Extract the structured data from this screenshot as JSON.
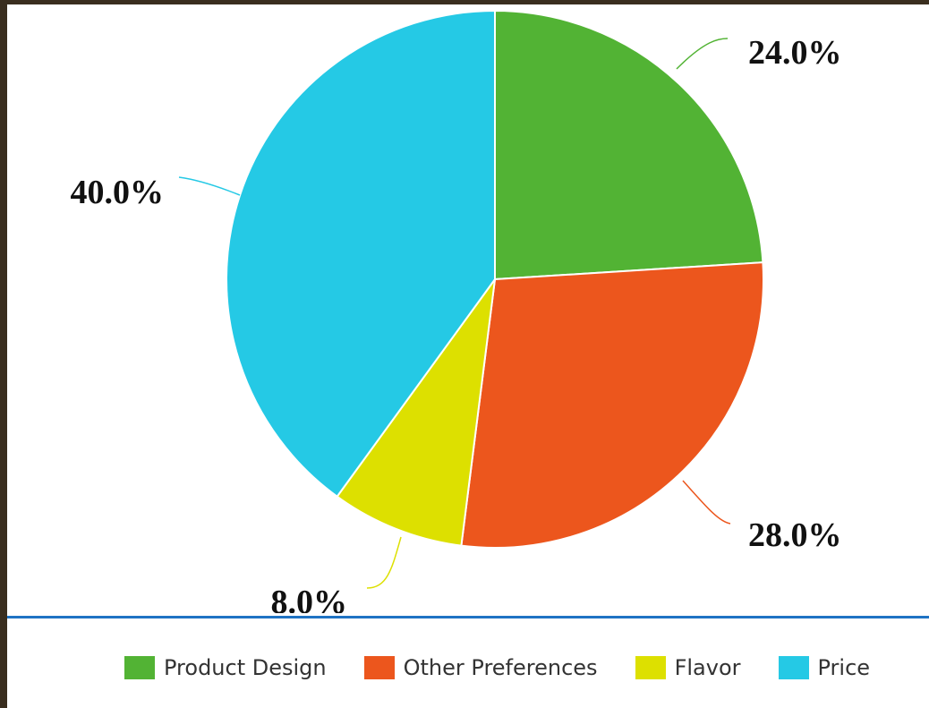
{
  "chart_data": {
    "type": "pie",
    "title": "",
    "start_angle_deg": 0,
    "direction": "clockwise",
    "legend_position": "bottom",
    "slices": [
      {
        "name": "Product Design",
        "value": 24.0,
        "label": "24.0%",
        "color": "#52b334"
      },
      {
        "name": "Other Preferences",
        "value": 28.0,
        "label": "28.0%",
        "color": "#ec561d"
      },
      {
        "name": "Flavor",
        "value": 8.0,
        "label": "8.0%",
        "color": "#dde000"
      },
      {
        "name": "Price",
        "value": 40.0,
        "label": "40.0%",
        "color": "#25c9e5"
      }
    ]
  }
}
